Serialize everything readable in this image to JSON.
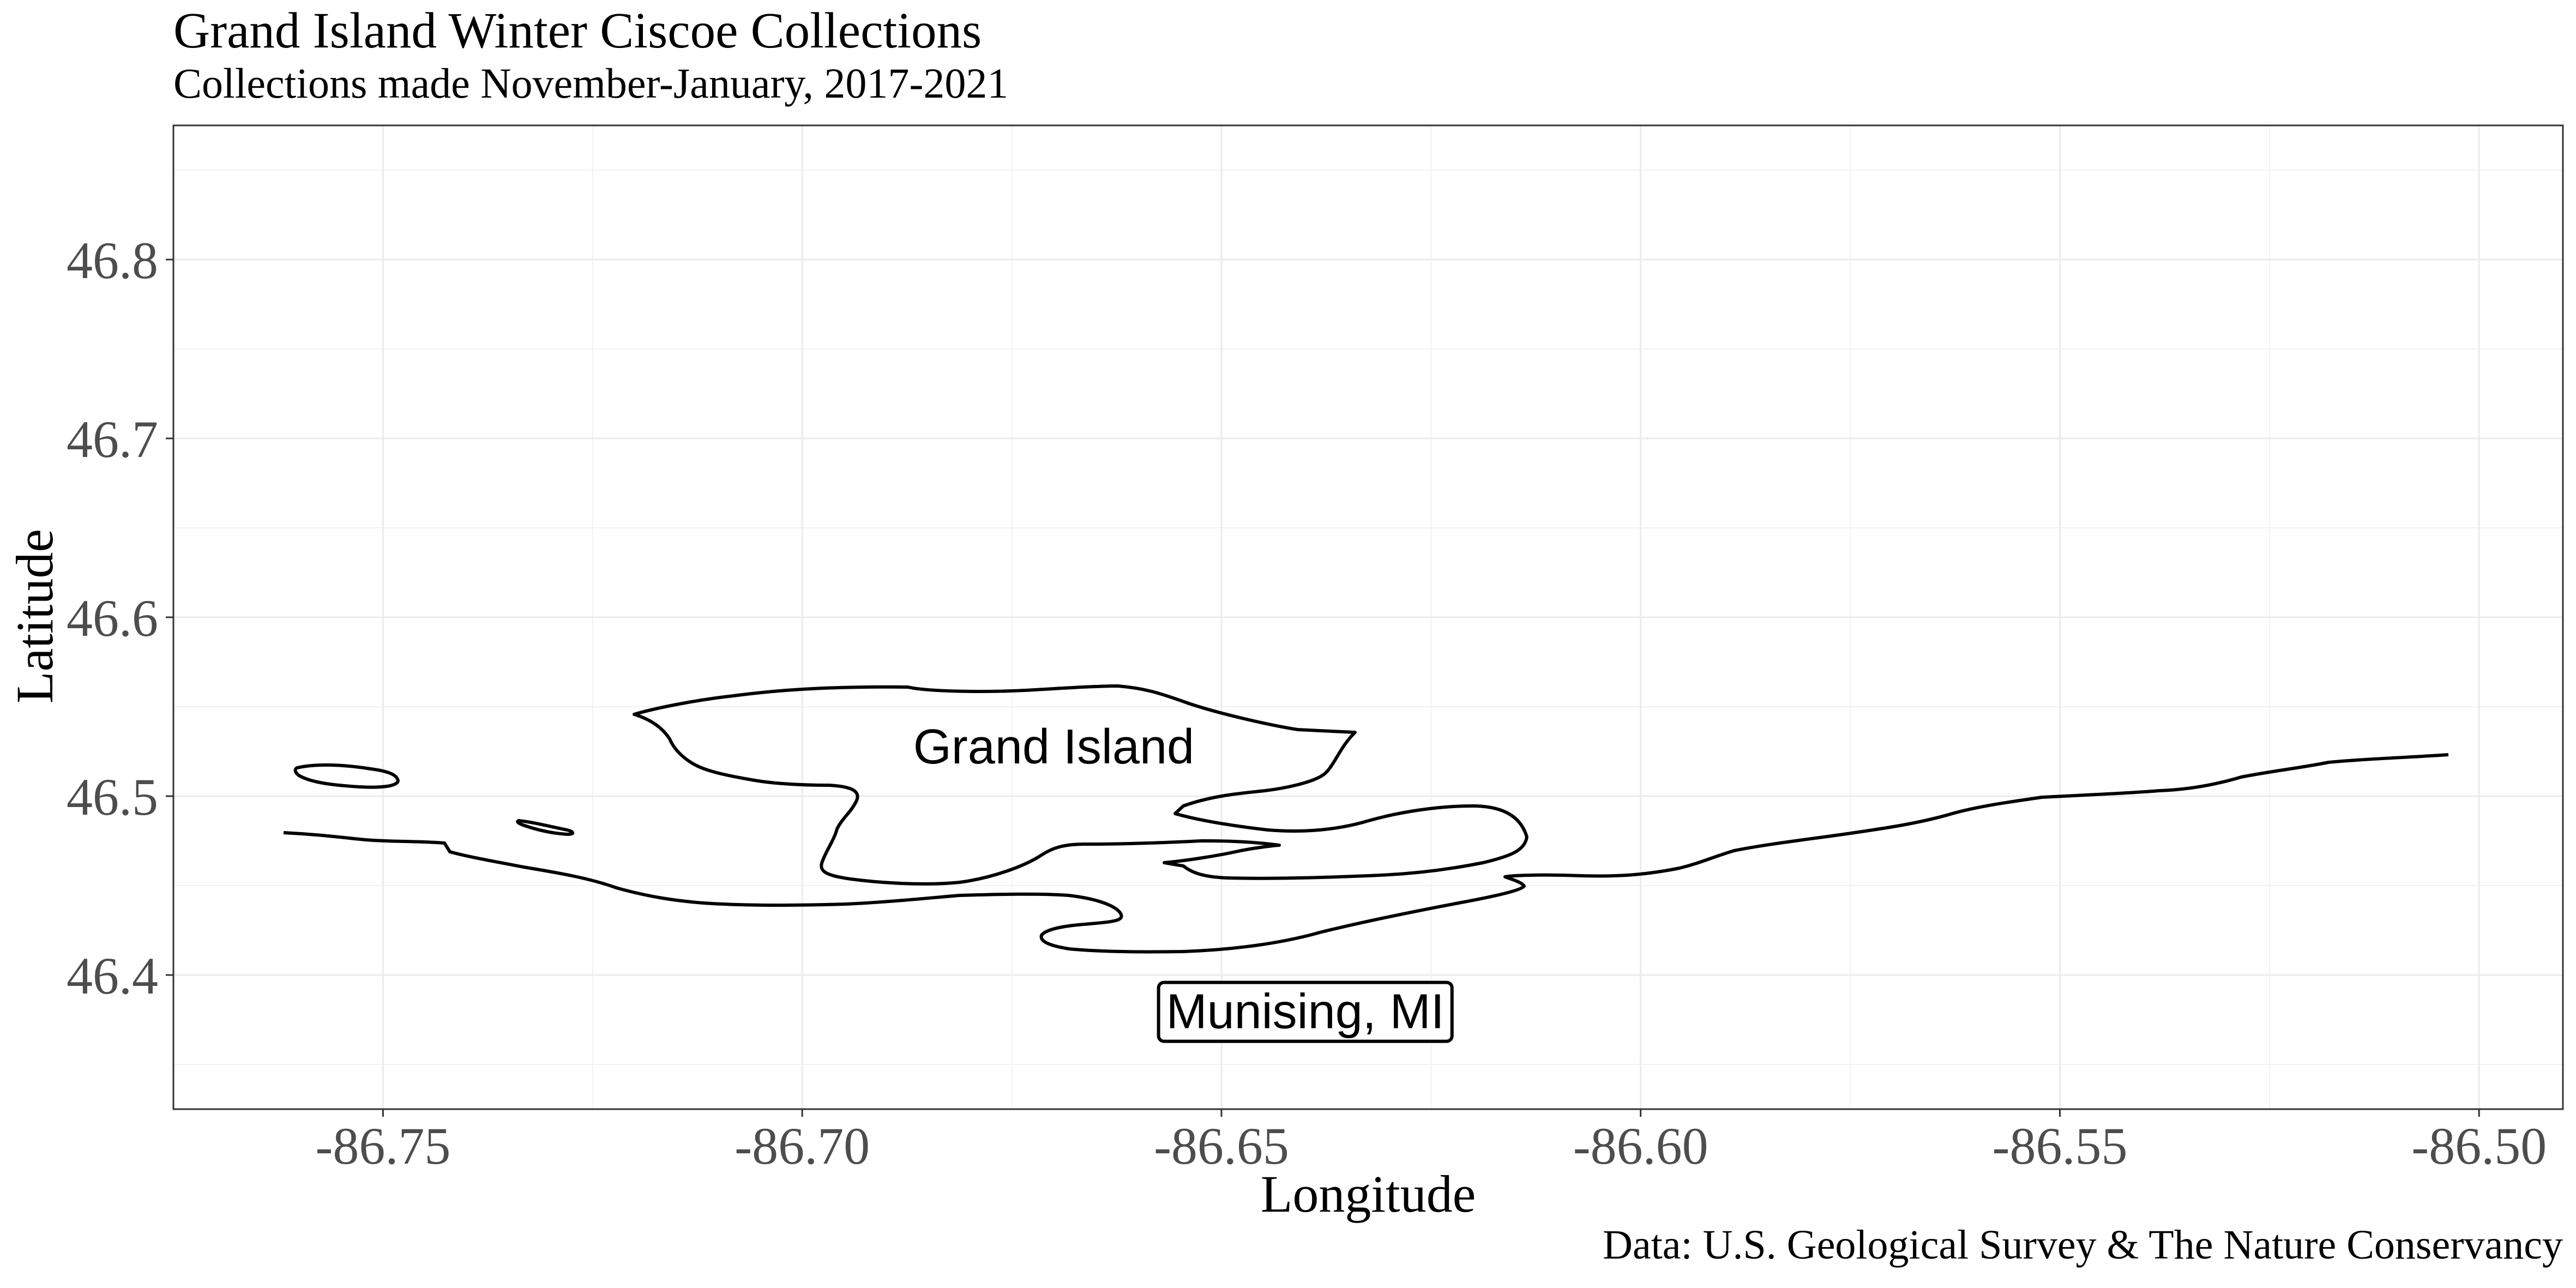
{
  "title": "Grand Island Winter Ciscoe Collections",
  "subtitle": "Collections made November-January, 2017-2021",
  "caption": "Data: U.S. Geological Survey & The Nature Conservancy",
  "map": {
    "xlabel": "Longitude",
    "ylabel": "Latitude",
    "xlim": [
      -86.775,
      -86.49
    ],
    "ylim": [
      46.325,
      46.875
    ],
    "x_ticks": [
      -86.75,
      -86.7,
      -86.65,
      -86.6,
      -86.55,
      -86.5
    ],
    "x_tick_labels": [
      "-86.75",
      "-86.70",
      "-86.65",
      "-86.60",
      "-86.55",
      "-86.50"
    ],
    "y_ticks": [
      46.4,
      46.5,
      46.6,
      46.7,
      46.8
    ],
    "y_tick_labels": [
      "46.4",
      "46.5",
      "46.6",
      "46.7",
      "46.8"
    ],
    "grid": true,
    "labels": [
      {
        "text": "Grand Island",
        "lon": -86.67,
        "lat": 46.528,
        "boxed": false
      },
      {
        "text": "Munising, MI",
        "lon": -86.64,
        "lat": 46.38,
        "boxed": true
      }
    ]
  }
}
